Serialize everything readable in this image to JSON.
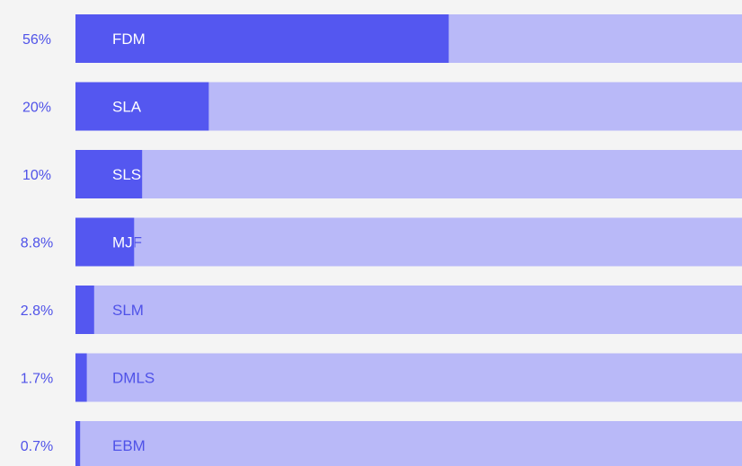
{
  "chart_data": {
    "type": "bar",
    "orientation": "horizontal",
    "title": "",
    "xlabel": "",
    "ylabel": "",
    "xlim": [
      0,
      100
    ],
    "grid": false,
    "legend": "none",
    "categories": [
      "FDM",
      "SLA",
      "SLS",
      "MJF",
      "SLM",
      "DMLS",
      "EBM"
    ],
    "values": [
      56,
      20,
      10,
      8.8,
      2.8,
      1.7,
      0.7
    ],
    "value_labels": [
      "56%",
      "20%",
      "10%",
      "8.8%",
      "2.8%",
      "1.7%",
      "0.7%"
    ]
  },
  "colors": {
    "background": "#f4f4f4",
    "bar_fill": "#5457f0",
    "bar_track": "#b9b9f8",
    "label_on_fill": "#ffffff",
    "label_on_track": "#4f52e8",
    "percent_text": "#4f52e8"
  }
}
